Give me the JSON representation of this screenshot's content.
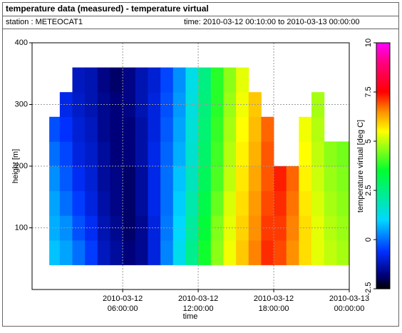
{
  "header": {
    "title": "temperature data (measured) - temperature virtual",
    "station": "station : METEOCAT1",
    "period": "time: 2010-03-12 00:10:00 to 2010-03-13 00:00:00"
  },
  "chart_data": {
    "type": "heatmap",
    "x_label": "time",
    "y_label": "height [m]",
    "colorbar_label": "temperature virtual [deg C]",
    "x": [
      "2010-03-12T00:10:00",
      "2010-03-12T01:00:00",
      "2010-03-12T02:00:00",
      "2010-03-12T03:00:00",
      "2010-03-12T04:00:00",
      "2010-03-12T05:00:00",
      "2010-03-12T06:00:00",
      "2010-03-12T07:00:00",
      "2010-03-12T08:00:00",
      "2010-03-12T09:00:00",
      "2010-03-12T10:00:00",
      "2010-03-12T11:00:00",
      "2010-03-12T12:00:00",
      "2010-03-12T13:00:00",
      "2010-03-12T14:00:00",
      "2010-03-12T15:00:00",
      "2010-03-12T16:00:00",
      "2010-03-12T17:00:00",
      "2010-03-12T18:00:00",
      "2010-03-12T19:00:00",
      "2010-03-12T20:00:00",
      "2010-03-12T21:00:00",
      "2010-03-12T22:00:00",
      "2010-03-12T23:00:00",
      "2010-03-13T00:00:00"
    ],
    "y": [
      40,
      80,
      120,
      160,
      200,
      240,
      280,
      320,
      360
    ],
    "values": [
      [
        0.8,
        0.6,
        0.5,
        0.3,
        0.0,
        -0.3,
        null,
        null
      ],
      [
        0.5,
        0.3,
        0.0,
        -0.2,
        -0.4,
        -0.6,
        -0.8,
        null
      ],
      [
        0.0,
        -0.3,
        -0.5,
        -0.7,
        -0.9,
        -1.0,
        -1.1,
        -1.2
      ],
      [
        -0.5,
        -0.7,
        -0.9,
        -1.0,
        -1.1,
        -1.2,
        -1.3,
        -1.3
      ],
      [
        -1.2,
        -1.3,
        -1.4,
        -1.5,
        -1.5,
        -1.6,
        -1.6,
        -1.7
      ],
      [
        -1.5,
        -1.6,
        -1.7,
        -1.7,
        -1.8,
        -1.8,
        -1.8,
        -1.9
      ],
      [
        -1.8,
        -1.9,
        -1.9,
        -1.9,
        -1.8,
        -1.8,
        -1.7,
        -1.7
      ],
      [
        -1.6,
        -1.6,
        -1.5,
        -1.5,
        -1.4,
        -1.4,
        -1.3,
        -1.3
      ],
      [
        -0.9,
        -0.9,
        -0.8,
        -0.8,
        -0.8,
        -0.9,
        -0.9,
        -1.0
      ],
      [
        0.2,
        0.1,
        0.0,
        0.0,
        -0.1,
        -0.2,
        -0.3,
        -0.4
      ],
      [
        1.2,
        1.0,
        0.9,
        0.8,
        0.6,
        0.5,
        0.4,
        0.3
      ],
      [
        2.4,
        2.2,
        2.0,
        1.8,
        1.6,
        1.5,
        1.4,
        1.3
      ],
      [
        3.6,
        3.4,
        3.2,
        3.0,
        2.8,
        2.7,
        2.6,
        2.5
      ],
      [
        4.6,
        4.5,
        4.3,
        4.1,
        4.0,
        3.9,
        3.8,
        3.8
      ],
      [
        5.4,
        5.3,
        5.2,
        5.0,
        4.9,
        4.8,
        4.7,
        4.6
      ],
      [
        6.0,
        5.9,
        5.8,
        5.7,
        5.6,
        5.5,
        5.4,
        5.3
      ],
      [
        6.6,
        6.5,
        6.4,
        6.3,
        6.2,
        6.1,
        6.0,
        null
      ],
      [
        7.2,
        7.1,
        7.0,
        6.9,
        6.9,
        6.8,
        null,
        null
      ],
      [
        7.0,
        7.1,
        7.2,
        7.3,
        null,
        null,
        null,
        null
      ],
      [
        6.5,
        6.6,
        6.7,
        6.8,
        null,
        null,
        null,
        null
      ],
      [
        5.8,
        5.8,
        5.7,
        5.6,
        5.5,
        5.4,
        null,
        null
      ],
      [
        5.3,
        5.3,
        5.2,
        5.1,
        5.0,
        4.9,
        4.8,
        null
      ],
      [
        5.0,
        4.9,
        4.8,
        4.7,
        4.6,
        null,
        null,
        null
      ],
      [
        4.8,
        4.7,
        4.6,
        4.5,
        4.4,
        null,
        null,
        null
      ]
    ],
    "xlim": [
      "2010-03-11T22:48:00",
      "2010-03-13T00:00:00"
    ],
    "xticks": [
      {
        "value": "2010-03-12T06:00:00",
        "label": [
          "2010-03-12",
          "06:00:00"
        ]
      },
      {
        "value": "2010-03-12T12:00:00",
        "label": [
          "2010-03-12",
          "12:00:00"
        ]
      },
      {
        "value": "2010-03-12T18:00:00",
        "label": [
          "2010-03-12",
          "18:00:00"
        ]
      },
      {
        "value": "2010-03-13T00:00:00",
        "label": [
          "2010-03-13",
          "00:00:00"
        ]
      }
    ],
    "ylim": [
      0,
      400
    ],
    "yticks": [
      100,
      200,
      300,
      400
    ],
    "clim": [
      -2.5,
      10
    ],
    "cticks": [
      -2.5,
      0,
      2.5,
      5,
      7.5,
      10
    ],
    "colormap": [
      [
        -2.5,
        "#000000"
      ],
      [
        -1.8,
        "#00007a"
      ],
      [
        -0.6,
        "#0030ff"
      ],
      [
        1.0,
        "#00d8ff"
      ],
      [
        3.5,
        "#00ff30"
      ],
      [
        5.5,
        "#ffff00"
      ],
      [
        6.5,
        "#ff9000"
      ],
      [
        7.5,
        "#ff0000"
      ],
      [
        9.0,
        "#ff0080"
      ],
      [
        10,
        "#ff00ff"
      ]
    ],
    "grid": true
  }
}
